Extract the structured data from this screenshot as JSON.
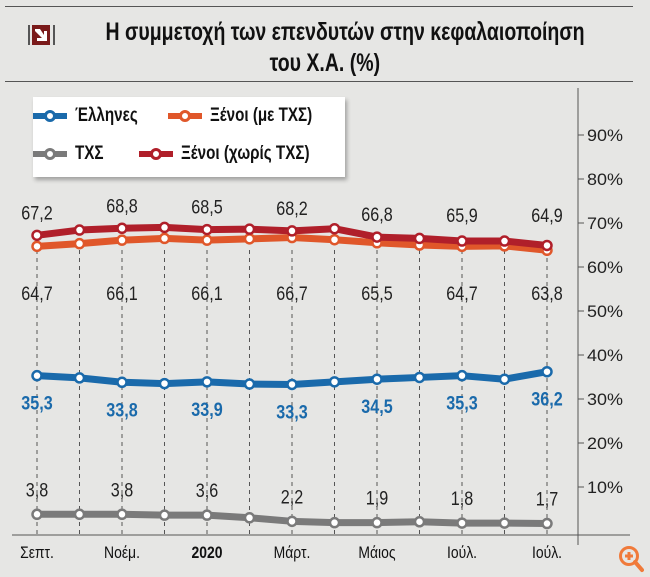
{
  "chart_data": {
    "type": "line",
    "title": "Η συμμετοχή των επενδυτών στην κεφαλαιοποίηση του Χ.Α. (%)",
    "title_line1": "Η συμμετοχή των επενδυτών στην κεφαλαιοποίηση",
    "title_line2": "του Χ.Α. (%)",
    "xtick_labels": [
      "Σεπτ.",
      "",
      "Νοέμ.",
      "",
      "2020",
      "",
      "Μάρτ.",
      "",
      "Μάιος",
      "",
      "Ιούλ.",
      "",
      "Ιούλ."
    ],
    "ylim": [
      0,
      95
    ],
    "yticks": [
      10,
      20,
      30,
      40,
      50,
      60,
      70,
      80,
      90
    ],
    "ytick_labels": [
      "10%",
      "20%",
      "30%",
      "40%",
      "50%",
      "60%",
      "70%",
      "80%",
      "90%"
    ],
    "y_axis_position": "right",
    "grid": false,
    "legend_position": "top-left",
    "series": [
      {
        "name": "Έλληνες",
        "color": "#1a6aab",
        "values": [
          35.3,
          34.8,
          33.8,
          33.5,
          33.9,
          33.4,
          33.3,
          33.9,
          34.5,
          34.9,
          35.3,
          34.5,
          36.2
        ],
        "labels": [
          "35,3",
          "",
          "33,8",
          "",
          "33,9",
          "",
          "33,3",
          "",
          "34,5",
          "",
          "35,3",
          "",
          "36,2"
        ]
      },
      {
        "name": "Ξένοι (με ΤΧΣ)",
        "color": "#e0572a",
        "values": [
          64.7,
          65.3,
          66.1,
          66.5,
          66.1,
          66.4,
          66.7,
          66.2,
          65.5,
          65.0,
          64.7,
          64.8,
          63.8
        ],
        "labels": [
          "64,7",
          "",
          "66,1",
          "",
          "66,1",
          "",
          "66,7",
          "",
          "65,5",
          "",
          "64,7",
          "",
          "63,8"
        ]
      },
      {
        "name": "ΤΧΣ",
        "color": "#7a7a7a",
        "values": [
          3.8,
          3.8,
          3.8,
          3.6,
          3.6,
          3.0,
          2.2,
          1.9,
          1.9,
          2.1,
          1.8,
          1.8,
          1.7
        ],
        "labels": [
          "3,8",
          "",
          "3,8",
          "",
          "3,6",
          "",
          "2,2",
          "",
          "1,9",
          "",
          "1,8",
          "",
          "1,7"
        ]
      },
      {
        "name": "Ξένοι (χωρίς ΤΧΣ)",
        "color": "#b01f2a",
        "values": [
          67.2,
          68.4,
          68.8,
          69.0,
          68.5,
          68.6,
          68.2,
          68.7,
          66.8,
          66.5,
          65.9,
          65.9,
          64.9
        ],
        "labels": [
          "67,2",
          "",
          "68,8",
          "",
          "68,5",
          "",
          "68,2",
          "",
          "66,8",
          "",
          "65,9",
          "",
          "64,9"
        ]
      }
    ]
  },
  "icons": {
    "logo": "arrow-down-right-icon",
    "zoom": "zoom-in-icon"
  }
}
